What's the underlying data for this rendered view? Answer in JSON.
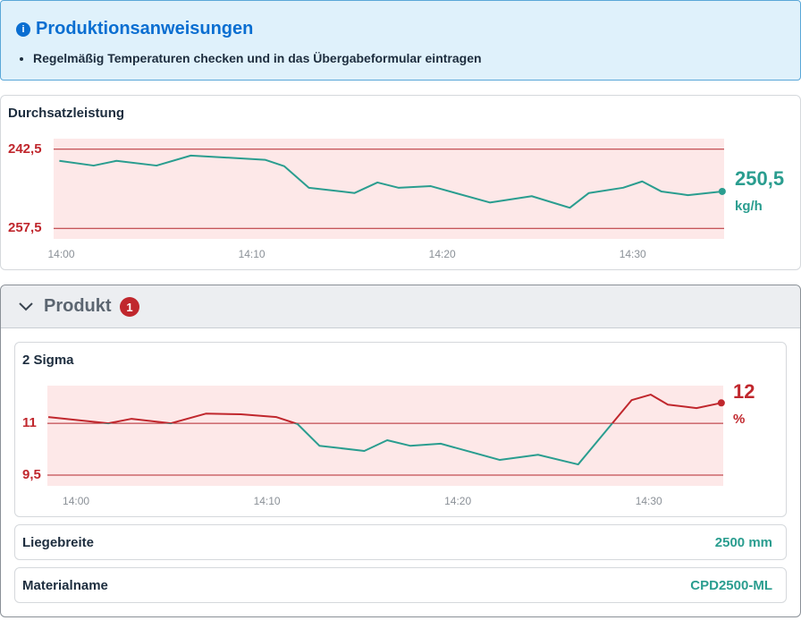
{
  "info": {
    "title": "Produktionsanweisungen",
    "items": [
      "Regelmäßig Temperaturen checken und in das Übergabeformular eintragen"
    ]
  },
  "throughput": {
    "type": "line",
    "title": "Durchsatzleistung",
    "x": [
      -0.1,
      1.7,
      2.9,
      5.0,
      6.8,
      10.7,
      11.7,
      13.0,
      15.4,
      16.6,
      17.7,
      19.4,
      22.5,
      24.7,
      26.7,
      27.7,
      29.5,
      30.5,
      31.5,
      32.9,
      34.7
    ],
    "values": [
      244.7,
      245.6,
      244.7,
      245.6,
      243.7,
      244.5,
      245.7,
      249.8,
      250.8,
      248.8,
      249.8,
      249.5,
      252.6,
      251.4,
      253.6,
      250.8,
      249.8,
      248.6,
      250.5,
      251.2,
      250.5
    ],
    "last_value_label": "250,5",
    "unit": "kg/h",
    "color": "#2a9d8f",
    "alert_color": "#c0272d",
    "band_color": "#fde8e8",
    "xlim": [
      -0.4,
      34.8
    ],
    "xticks": [
      {
        "value": 0,
        "label": "14:00"
      },
      {
        "value": 10,
        "label": "14:10"
      },
      {
        "value": 20,
        "label": "14:20"
      },
      {
        "value": 30,
        "label": "14:30"
      }
    ],
    "ylim": [
      240.5,
      259.5
    ],
    "y_reversed": true,
    "yticks": [
      {
        "value": 242.5,
        "label": "242,5"
      },
      {
        "value": 257.5,
        "label": "257,5"
      }
    ]
  },
  "product": {
    "title": "Produkt",
    "badge": "1",
    "chart": {
      "type": "line",
      "title": "2 Sigma",
      "x": [
        -1.45,
        1.69,
        2.91,
        4.97,
        6.8,
        8.63,
        10.5,
        11.6,
        12.75,
        15.1,
        16.3,
        17.5,
        19.1,
        22.2,
        24.2,
        26.3,
        29.1,
        30.1,
        31.0,
        32.5,
        33.8
      ],
      "values": [
        11.18,
        11.0,
        11.13,
        11.0,
        11.28,
        11.26,
        11.18,
        10.98,
        10.35,
        10.2,
        10.51,
        10.35,
        10.41,
        9.94,
        10.09,
        9.81,
        11.67,
        11.83,
        11.54,
        11.44,
        11.59
      ],
      "last_value_label": "12",
      "unit": "%",
      "color": "#2a9d8f",
      "alert_color": "#c0272d",
      "band_color": "#fde8e8",
      "xlim": [
        -1.5,
        33.9
      ],
      "xticks": [
        {
          "value": 0,
          "label": "14:00"
        },
        {
          "value": 10,
          "label": "14:10"
        },
        {
          "value": 20,
          "label": "14:20"
        },
        {
          "value": 30,
          "label": "14:30"
        }
      ],
      "ylim": [
        9.19,
        12.09
      ],
      "y_reversed": false,
      "yticks": [
        {
          "value": 11,
          "label": "11"
        },
        {
          "value": 9.5,
          "label": "9,5"
        }
      ]
    },
    "fields": [
      {
        "label": "Liegebreite",
        "value": "2500 mm"
      },
      {
        "label": "Materialname",
        "value": "CPD2500-ML"
      }
    ]
  }
}
